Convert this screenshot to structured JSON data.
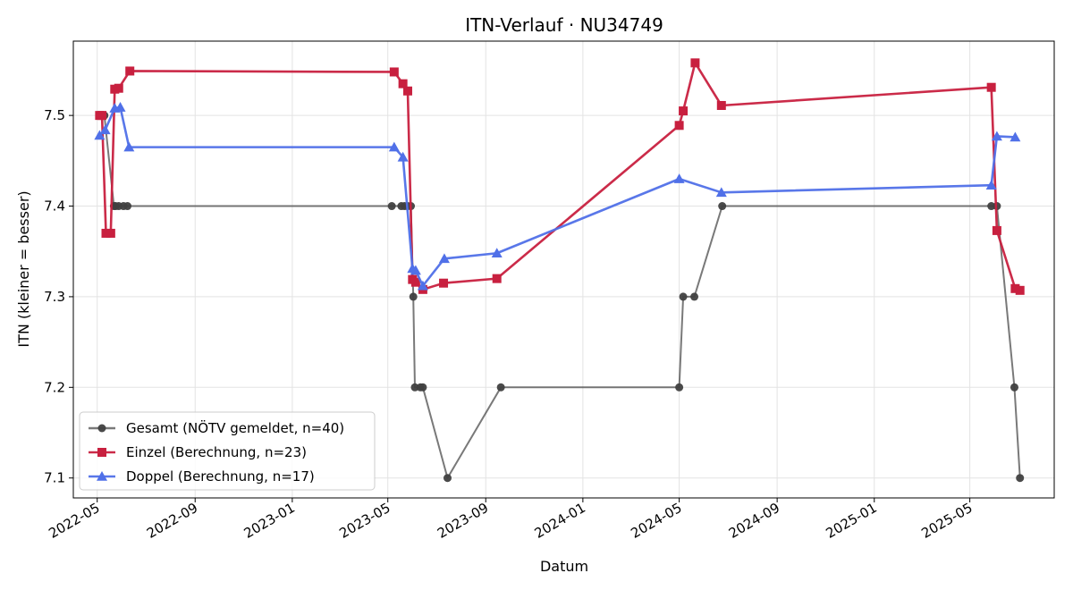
{
  "chart_data": {
    "type": "line",
    "title": "ITN-Verlauf · NU34749",
    "xlabel": "Datum",
    "ylabel": "ITN  (kleiner = besser)",
    "x_axis_type": "date",
    "xlim": [
      "2022-04-01",
      "2025-08-15"
    ],
    "ylim": [
      7.078,
      7.582
    ],
    "x_ticks": [
      {
        "date": "2022-05-01",
        "label": "2022-05"
      },
      {
        "date": "2022-09-01",
        "label": "2022-09"
      },
      {
        "date": "2023-01-01",
        "label": "2023-01"
      },
      {
        "date": "2023-05-01",
        "label": "2023-05"
      },
      {
        "date": "2023-09-01",
        "label": "2023-09"
      },
      {
        "date": "2024-01-01",
        "label": "2024-01"
      },
      {
        "date": "2024-05-01",
        "label": "2024-05"
      },
      {
        "date": "2024-09-01",
        "label": "2024-09"
      },
      {
        "date": "2025-01-01",
        "label": "2025-01"
      },
      {
        "date": "2025-05-01",
        "label": "2025-05"
      }
    ],
    "y_ticks": [
      {
        "value": 7.1,
        "label": "7.1"
      },
      {
        "value": 7.2,
        "label": "7.2"
      },
      {
        "value": 7.3,
        "label": "7.3"
      },
      {
        "value": 7.4,
        "label": "7.4"
      },
      {
        "value": 7.5,
        "label": "7.5"
      }
    ],
    "grid": true,
    "legend_position": "lower-left",
    "series": [
      {
        "name": "Gesamt (NÖTV gemeldet, n=40)",
        "color": "#404040",
        "marker": "circle",
        "points": [
          {
            "x": "2022-05-04",
            "y": 7.5
          },
          {
            "x": "2022-05-07",
            "y": 7.5
          },
          {
            "x": "2022-05-10",
            "y": 7.5
          },
          {
            "x": "2022-05-22",
            "y": 7.4
          },
          {
            "x": "2022-05-24",
            "y": 7.4
          },
          {
            "x": "2022-05-28",
            "y": 7.4
          },
          {
            "x": "2022-06-03",
            "y": 7.4
          },
          {
            "x": "2022-06-08",
            "y": 7.4
          },
          {
            "x": "2023-05-06",
            "y": 7.4
          },
          {
            "x": "2023-05-18",
            "y": 7.4
          },
          {
            "x": "2023-05-22",
            "y": 7.4
          },
          {
            "x": "2023-05-26",
            "y": 7.4
          },
          {
            "x": "2023-05-30",
            "y": 7.4
          },
          {
            "x": "2023-06-02",
            "y": 7.3
          },
          {
            "x": "2023-06-04",
            "y": 7.2
          },
          {
            "x": "2023-06-11",
            "y": 7.2
          },
          {
            "x": "2023-06-14",
            "y": 7.2
          },
          {
            "x": "2023-07-15",
            "y": 7.1
          },
          {
            "x": "2023-09-20",
            "y": 7.2
          },
          {
            "x": "2024-05-01",
            "y": 7.2
          },
          {
            "x": "2024-05-06",
            "y": 7.3
          },
          {
            "x": "2024-05-20",
            "y": 7.3
          },
          {
            "x": "2024-06-24",
            "y": 7.4
          },
          {
            "x": "2025-05-28",
            "y": 7.4
          },
          {
            "x": "2025-06-04",
            "y": 7.4
          },
          {
            "x": "2025-06-26",
            "y": 7.2
          },
          {
            "x": "2025-07-03",
            "y": 7.1
          }
        ]
      },
      {
        "name": "Einzel (Berechnung, n=23)",
        "color": "#c8203f",
        "marker": "square",
        "points": [
          {
            "x": "2022-05-04",
            "y": 7.5
          },
          {
            "x": "2022-05-07",
            "y": 7.5
          },
          {
            "x": "2022-05-12",
            "y": 7.37
          },
          {
            "x": "2022-05-18",
            "y": 7.37
          },
          {
            "x": "2022-05-23",
            "y": 7.529
          },
          {
            "x": "2022-05-28",
            "y": 7.53
          },
          {
            "x": "2022-06-11",
            "y": 7.549
          },
          {
            "x": "2023-05-09",
            "y": 7.548
          },
          {
            "x": "2023-05-20",
            "y": 7.535
          },
          {
            "x": "2023-05-26",
            "y": 7.527
          },
          {
            "x": "2023-06-01",
            "y": 7.319
          },
          {
            "x": "2023-06-05",
            "y": 7.316
          },
          {
            "x": "2023-06-14",
            "y": 7.308
          },
          {
            "x": "2023-07-10",
            "y": 7.315
          },
          {
            "x": "2023-09-15",
            "y": 7.32
          },
          {
            "x": "2024-05-01",
            "y": 7.489
          },
          {
            "x": "2024-05-06",
            "y": 7.505
          },
          {
            "x": "2024-05-21",
            "y": 7.558
          },
          {
            "x": "2024-06-23",
            "y": 7.511
          },
          {
            "x": "2025-05-28",
            "y": 7.531
          },
          {
            "x": "2025-06-04",
            "y": 7.373
          },
          {
            "x": "2025-06-27",
            "y": 7.309
          },
          {
            "x": "2025-07-03",
            "y": 7.307
          }
        ]
      },
      {
        "name": "Doppel (Berechnung, n=17)",
        "color": "#5070e8",
        "marker": "triangle",
        "points": [
          {
            "x": "2022-05-04",
            "y": 7.478
          },
          {
            "x": "2022-05-11",
            "y": 7.484
          },
          {
            "x": "2022-05-23",
            "y": 7.508
          },
          {
            "x": "2022-05-30",
            "y": 7.509
          },
          {
            "x": "2022-06-10",
            "y": 7.465
          },
          {
            "x": "2023-05-09",
            "y": 7.465
          },
          {
            "x": "2023-05-20",
            "y": 7.454
          },
          {
            "x": "2023-06-01",
            "y": 7.331
          },
          {
            "x": "2023-06-05",
            "y": 7.329
          },
          {
            "x": "2023-06-14",
            "y": 7.312
          },
          {
            "x": "2023-07-11",
            "y": 7.342
          },
          {
            "x": "2023-09-15",
            "y": 7.348
          },
          {
            "x": "2024-05-01",
            "y": 7.43
          },
          {
            "x": "2024-06-23",
            "y": 7.415
          },
          {
            "x": "2025-05-28",
            "y": 7.423
          },
          {
            "x": "2025-06-04",
            "y": 7.477
          },
          {
            "x": "2025-06-27",
            "y": 7.476
          }
        ]
      }
    ]
  }
}
